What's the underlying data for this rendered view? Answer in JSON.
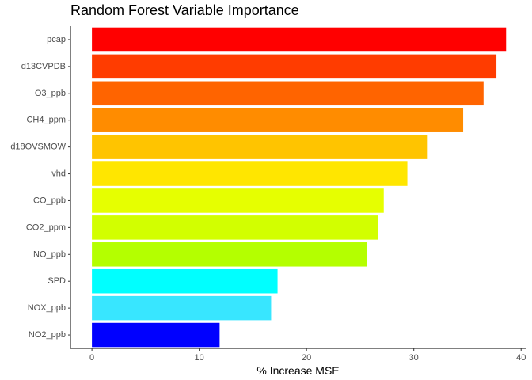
{
  "chart_data": {
    "type": "bar",
    "orientation": "horizontal",
    "title": "Random Forest Variable Importance",
    "xlabel": "% Increase MSE",
    "ylabel": "",
    "xlim": [
      -2,
      40.5
    ],
    "xticks": [
      0,
      10,
      20,
      30,
      40
    ],
    "grid": false,
    "legend": "none",
    "categories": [
      "pcap",
      "d13CVPDB",
      "O3_ppb",
      "CH4_ppm",
      "d18OVSMOW",
      "vhd",
      "CO_ppb",
      "CO2_ppm",
      "NO_ppb",
      "SPD",
      "NOX_ppb",
      "NO2_ppb"
    ],
    "values": [
      38.6,
      37.7,
      36.5,
      34.6,
      31.3,
      29.4,
      27.2,
      26.7,
      25.6,
      17.3,
      16.7,
      11.9
    ],
    "colors": [
      "#ff0000",
      "#ff3c00",
      "#ff6400",
      "#ff8c00",
      "#ffc400",
      "#ffe600",
      "#e6ff00",
      "#d2ff00",
      "#b4ff00",
      "#00ffff",
      "#38e6ff",
      "#0000ff"
    ]
  }
}
